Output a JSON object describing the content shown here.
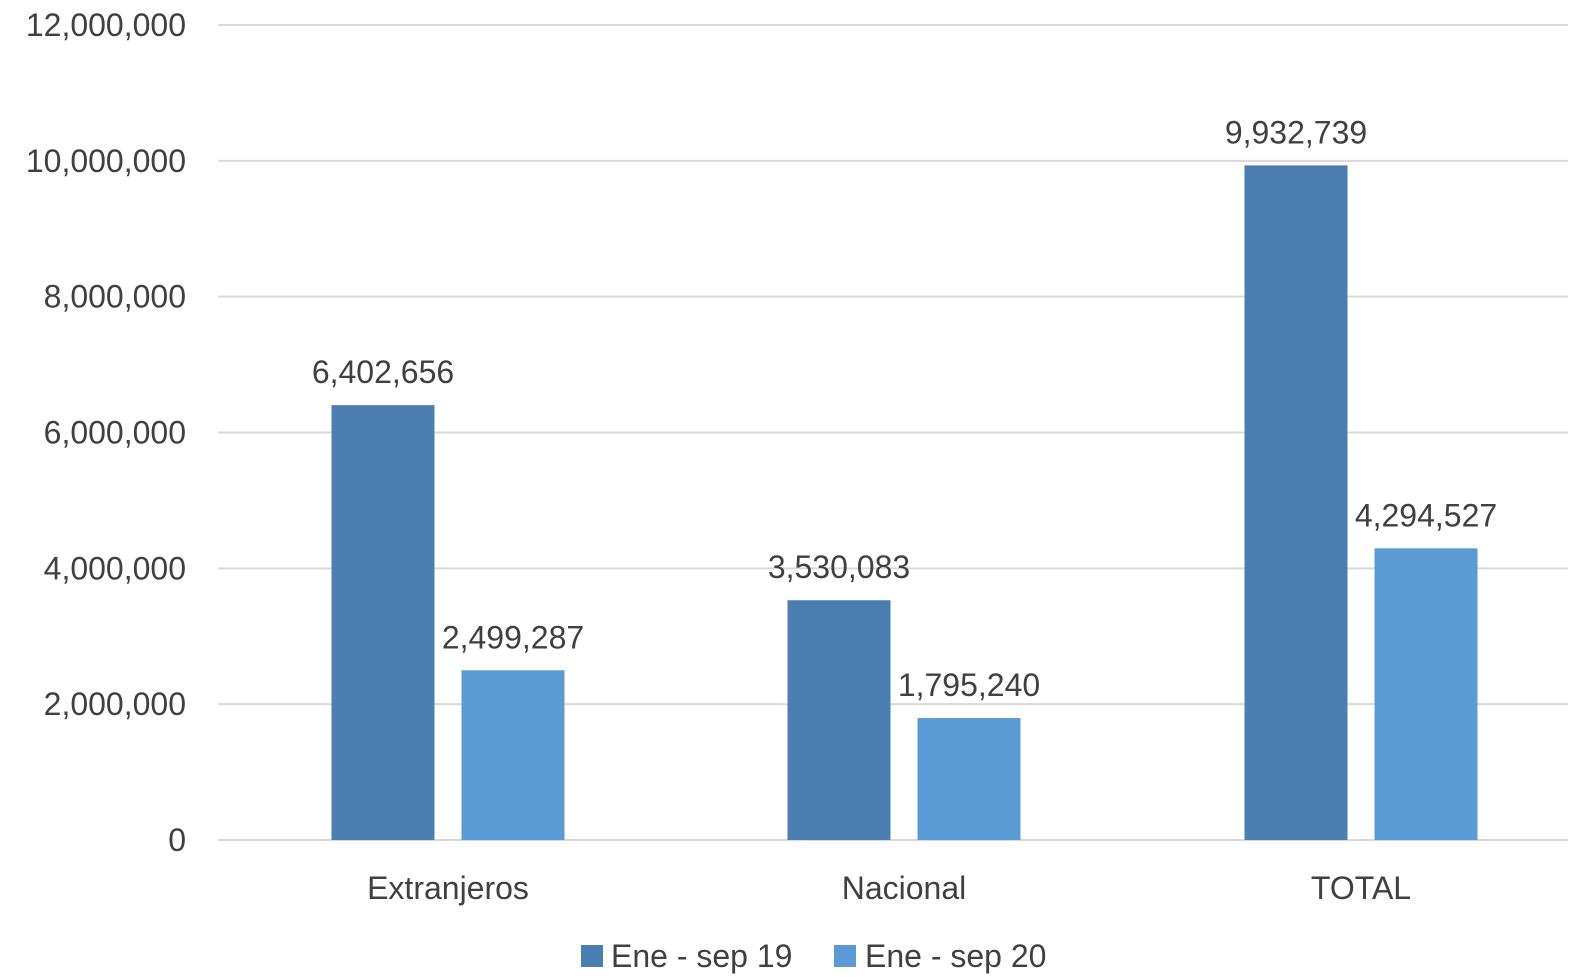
{
  "chart_data": {
    "type": "bar",
    "categories": [
      "Extranjeros",
      "Nacional",
      "TOTAL"
    ],
    "series": [
      {
        "name": "Ene - sep 19",
        "values": [
          6402656,
          3530083,
          9932739
        ],
        "labels": [
          "6,402,656",
          "3,530,083",
          "9,932,739"
        ],
        "color": "#4a7eb0"
      },
      {
        "name": "Ene - sep 20",
        "values": [
          2499287,
          1795240,
          4294527
        ],
        "labels": [
          "2,499,287",
          "1,795,240",
          "4,294,527"
        ],
        "color": "#5b9bd5"
      }
    ],
    "ylim": [
      0,
      12000000
    ],
    "yticks": [
      {
        "value": 0,
        "label": "0"
      },
      {
        "value": 2000000,
        "label": "2,000,000"
      },
      {
        "value": 4000000,
        "label": "4,000,000"
      },
      {
        "value": 6000000,
        "label": "6,000,000"
      },
      {
        "value": 8000000,
        "label": "8,000,000"
      },
      {
        "value": 10000000,
        "label": "10,000,000"
      },
      {
        "value": 12000000,
        "label": "12,000,000"
      }
    ],
    "title": "",
    "xlabel": "",
    "ylabel": "",
    "grid": true,
    "gridline_color": "#d9d9d9",
    "text_color": "#404040",
    "legend_position": "bottom"
  }
}
